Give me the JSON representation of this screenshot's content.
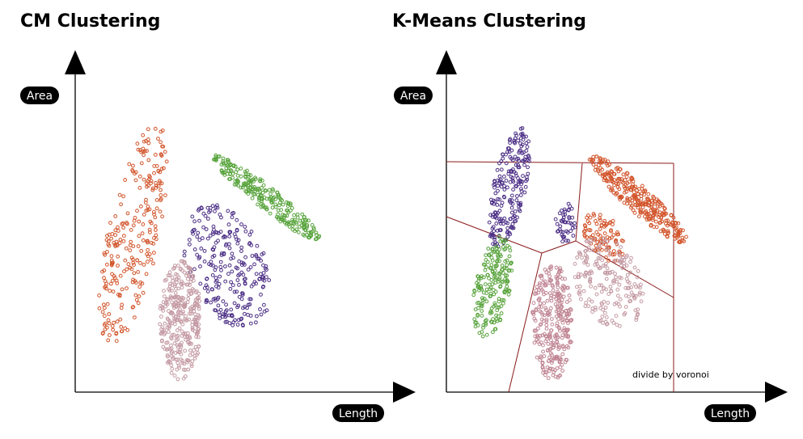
{
  "chart_data": [
    {
      "type": "scatter",
      "title": "CM Clustering",
      "xlabel": "Length",
      "ylabel": "Area",
      "grid": false,
      "clusters": [
        {
          "color": "#d2542a",
          "center": [
            165,
            292
          ],
          "semi_axes": [
            32,
            142
          ],
          "rotation_deg": 12,
          "points": 260
        },
        {
          "color": "#57a33b",
          "center": [
            330,
            245
          ],
          "semi_axes": [
            14,
            84
          ],
          "rotation_deg": -52,
          "points": 260
        },
        {
          "color": "#4b2e86",
          "center": [
            281,
            329
          ],
          "semi_axes": [
            48,
            80
          ],
          "rotation_deg": -23,
          "points": 260
        },
        {
          "color": "#c49aa3",
          "center": [
            223,
            396
          ],
          "semi_axes": [
            26,
            74
          ],
          "rotation_deg": 0,
          "points": 330
        }
      ]
    },
    {
      "type": "scatter",
      "title": "K-Means Clustering",
      "xlabel": "Length",
      "ylabel": "Area",
      "grid": false,
      "annotation": "divide by voronoi",
      "clusters": [
        {
          "color": "#4b2e86",
          "center": [
            630,
            232
          ],
          "semi_axes": [
            20,
            76
          ],
          "rotation_deg": 12,
          "points": 220
        },
        {
          "color": "#57a33b",
          "center": [
            609,
            354
          ],
          "semi_axes": [
            22,
            64
          ],
          "rotation_deg": 10,
          "points": 200
        },
        {
          "color": "#c08593",
          "center": [
            683,
            398
          ],
          "semi_axes": [
            25,
            72
          ],
          "rotation_deg": 0,
          "points": 300
        },
        {
          "color": "#d2542a",
          "center": [
            789,
            246
          ],
          "semi_axes": [
            16,
            80
          ],
          "rotation_deg": -48,
          "points": 300
        },
        {
          "color": "#4b2e86",
          "center": [
            700,
            275
          ],
          "semi_axes": [
            13,
            26
          ],
          "rotation_deg": 0,
          "points": 45
        },
        {
          "color": "#d2542a",
          "center": [
            747,
            293
          ],
          "semi_axes": [
            22,
            34
          ],
          "rotation_deg": -30,
          "points": 90
        },
        {
          "color": "#c49aa3",
          "center": [
            753,
            350
          ],
          "semi_axes": [
            40,
            60
          ],
          "rotation_deg": -25,
          "points": 200
        }
      ],
      "voronoi_color": "#8b1a1a"
    }
  ]
}
